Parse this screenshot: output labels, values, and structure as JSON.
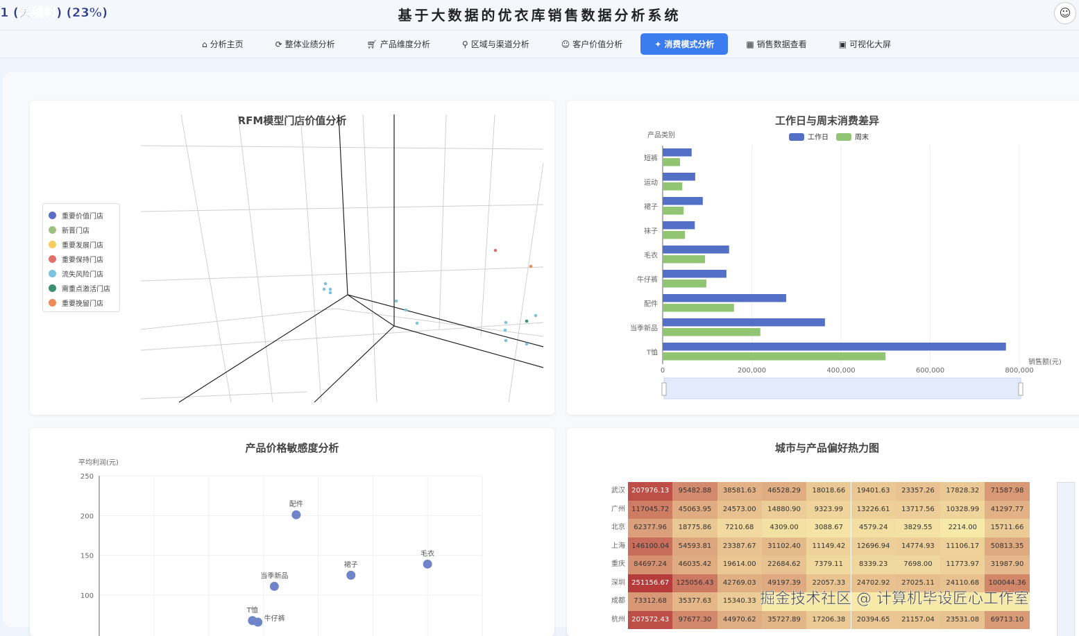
{
  "header": {
    "fps_overlay": "1 (关键帧) (23%)",
    "title": "基于大数据的优衣库销售数据分析系统",
    "avatar_icon": "cat-avatar-icon"
  },
  "nav": {
    "items": [
      {
        "label": "分析主页",
        "icon": "home-icon",
        "active": false
      },
      {
        "label": "整体业绩分析",
        "icon": "refresh-icon",
        "active": false
      },
      {
        "label": "产品维度分析",
        "icon": "cart-icon",
        "active": false
      },
      {
        "label": "区域与渠道分析",
        "icon": "location-icon",
        "active": false
      },
      {
        "label": "客户价值分析",
        "icon": "user-icon",
        "active": false
      },
      {
        "label": "消费模式分析",
        "icon": "pulse-icon",
        "active": true
      },
      {
        "label": "销售数据查看",
        "icon": "table-icon",
        "active": false
      },
      {
        "label": "可视化大屏",
        "icon": "monitor-icon",
        "active": false
      }
    ],
    "active_color": "#3b7cf0"
  },
  "rfm": {
    "title": "RFM模型门店价值分析",
    "legend": [
      {
        "label": "重要价值门店",
        "color": "#5b6fc4"
      },
      {
        "label": "新晋门店",
        "color": "#9ec27f"
      },
      {
        "label": "重要发展门店",
        "color": "#f5cc5e"
      },
      {
        "label": "重要保持门店",
        "color": "#e0716b"
      },
      {
        "label": "流失风险门店",
        "color": "#7fc1e0"
      },
      {
        "label": "需重点激活门店",
        "color": "#3b9070"
      },
      {
        "label": "重要挽留门店",
        "color": "#f08a5d"
      }
    ]
  },
  "chart_data": [
    {
      "type": "bar",
      "orientation": "horizontal",
      "title": "工作日与周末消费差异",
      "ylabel": "产品类别",
      "xlabel": "销售额(元)",
      "categories": [
        "短裤",
        "运动",
        "裙子",
        "袜子",
        "毛衣",
        "牛仔裤",
        "配件",
        "当季新品",
        "T恤"
      ],
      "xlim": [
        0,
        800000
      ],
      "xticks": [
        "0",
        "200,000",
        "400,000",
        "600,000",
        "800,000"
      ],
      "legend_position": "top",
      "grid": true,
      "datazoom": true,
      "series": [
        {
          "name": "工作日",
          "color": "#5470c6",
          "values": [
            65000,
            73000,
            90000,
            72000,
            149000,
            143000,
            277000,
            364000,
            770000
          ]
        },
        {
          "name": "周末",
          "color": "#91c473",
          "values": [
            39000,
            44000,
            47000,
            50000,
            95000,
            98000,
            160000,
            219000,
            500000
          ]
        }
      ]
    },
    {
      "type": "scatter",
      "title": "产品价格敏感度分析",
      "ylabel": "平均利润(元)",
      "ylim": [
        50,
        250
      ],
      "yticks": [
        "250",
        "200",
        "150",
        "100"
      ],
      "grid": true,
      "color": "#6f84c9",
      "points": [
        {
          "label": "配件",
          "x": 3.6,
          "y": 201
        },
        {
          "label": "毛衣",
          "x": 6.0,
          "y": 139
        },
        {
          "label": "裙子",
          "x": 4.6,
          "y": 125
        },
        {
          "label": "当季新品",
          "x": 3.2,
          "y": 111
        },
        {
          "label": "T恤",
          "x": 2.8,
          "y": 68
        },
        {
          "label": "牛仔裤",
          "x": 2.9,
          "y": 66
        }
      ]
    },
    {
      "type": "heatmap",
      "title": "城市与产品偏好热力图",
      "rows": [
        "武汉",
        "广州",
        "北京",
        "上海",
        "重庆",
        "深圳",
        "成都",
        "杭州"
      ],
      "values": [
        [
          207976.13,
          95482.88,
          38581.63,
          46528.29,
          18018.66,
          19401.63,
          23357.26,
          17828.32,
          71587.98
        ],
        [
          117045.72,
          45063.95,
          24573.0,
          14880.9,
          9323.99,
          13226.61,
          13717.56,
          10328.99,
          41297.77
        ],
        [
          62377.96,
          18775.86,
          7210.68,
          4309.0,
          3088.67,
          4579.24,
          3829.55,
          2214.0,
          15711.66
        ],
        [
          146100.04,
          54593.81,
          23387.67,
          31102.4,
          11149.42,
          12696.94,
          14774.93,
          11106.17,
          50813.35
        ],
        [
          84697.24,
          46035.42,
          19614.0,
          22684.62,
          7379.11,
          8339.23,
          7698.0,
          11773.97,
          31987.9
        ],
        [
          251156.67,
          125056.43,
          42769.03,
          49197.39,
          22057.33,
          24702.92,
          27025.11,
          24110.68,
          100044.36
        ],
        [
          73312.68,
          35377.63,
          15340.33,
          null,
          null,
          null,
          null,
          null,
          null
        ],
        [
          207572.43,
          97677.3,
          44970.62,
          35727.89,
          17206.38,
          20394.65,
          21157.04,
          23531.08,
          69713.1
        ]
      ],
      "color_range": [
        "#f7eaa9",
        "#b63c3c"
      ]
    }
  ],
  "watermark": "掘金技术社区 @ 计算机毕设匠心工作室"
}
